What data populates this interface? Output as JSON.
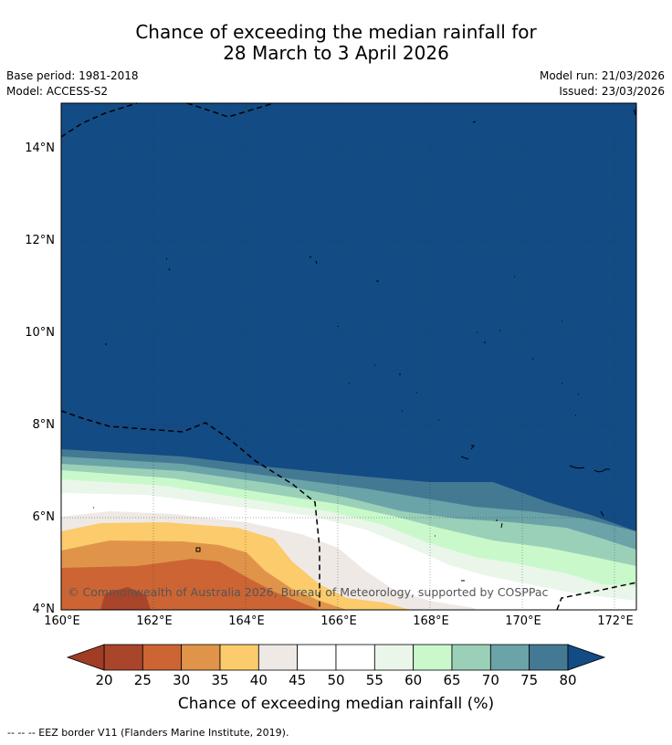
{
  "title_line1": "Chance of exceeding the median rainfall for",
  "title_line2": "28 March to 3 April 2026",
  "meta": {
    "base_period": "Base period: 1981-2018",
    "model": "Model: ACCESS-S2",
    "model_run": "Model run: 21/03/2026",
    "issued": "Issued: 23/03/2026"
  },
  "lat_ticks": [
    "14°N",
    "12°N",
    "10°N",
    "8°N",
    "6°N",
    "4°N"
  ],
  "lon_ticks": [
    "160°E",
    "162°E",
    "164°E",
    "166°E",
    "168°E",
    "170°E",
    "172°E"
  ],
  "copyright": "© Commonwealth of Australia 2026, Bureau of Meteorology, supported by COSPPac",
  "colorbar": {
    "labels": [
      "20",
      "25",
      "30",
      "35",
      "40",
      "45",
      "50",
      "55",
      "60",
      "65",
      "70",
      "75",
      "80"
    ],
    "colors": [
      "#a9452a",
      "#cc6533",
      "#e0944a",
      "#fbcb6c",
      "#efe9e6",
      "#ffffff",
      "#ffffff",
      "#e9f6e9",
      "#c9f9cb",
      "#9ad0b7",
      "#6aa3a8",
      "#447993"
    ],
    "under_color": "#a03d24",
    "over_color": "#134b84",
    "title": "Chance of exceeding median rainfall (%)"
  },
  "footer": "--  --  -- EEZ border V11 (Flanders Marine Institute, 2019)."
}
